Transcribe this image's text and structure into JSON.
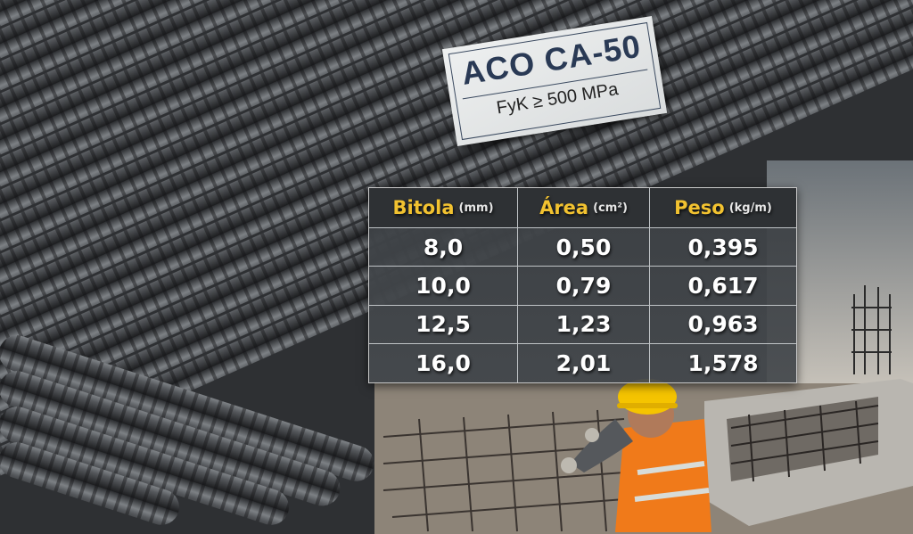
{
  "sign": {
    "title": "ACO CA-50",
    "subtitle": "FyK ≥ 500 MPa"
  },
  "table": {
    "headers": [
      {
        "label": "Bitola",
        "unit": "(mm)"
      },
      {
        "label": "Área",
        "unit": "(cm²)"
      },
      {
        "label": "Peso",
        "unit": "(kg/m)"
      }
    ],
    "rows": [
      [
        "8,0",
        "0,50",
        "0,395"
      ],
      [
        "10,0",
        "0,79",
        "0,617"
      ],
      [
        "12,5",
        "1,23",
        "0,963"
      ],
      [
        "16,0",
        "2,01",
        "1,578"
      ]
    ]
  },
  "colors": {
    "header_accent": "#f2c230",
    "steel": "#4a4d51",
    "helmet": "#f5c400",
    "vest": "#f07a1a"
  }
}
